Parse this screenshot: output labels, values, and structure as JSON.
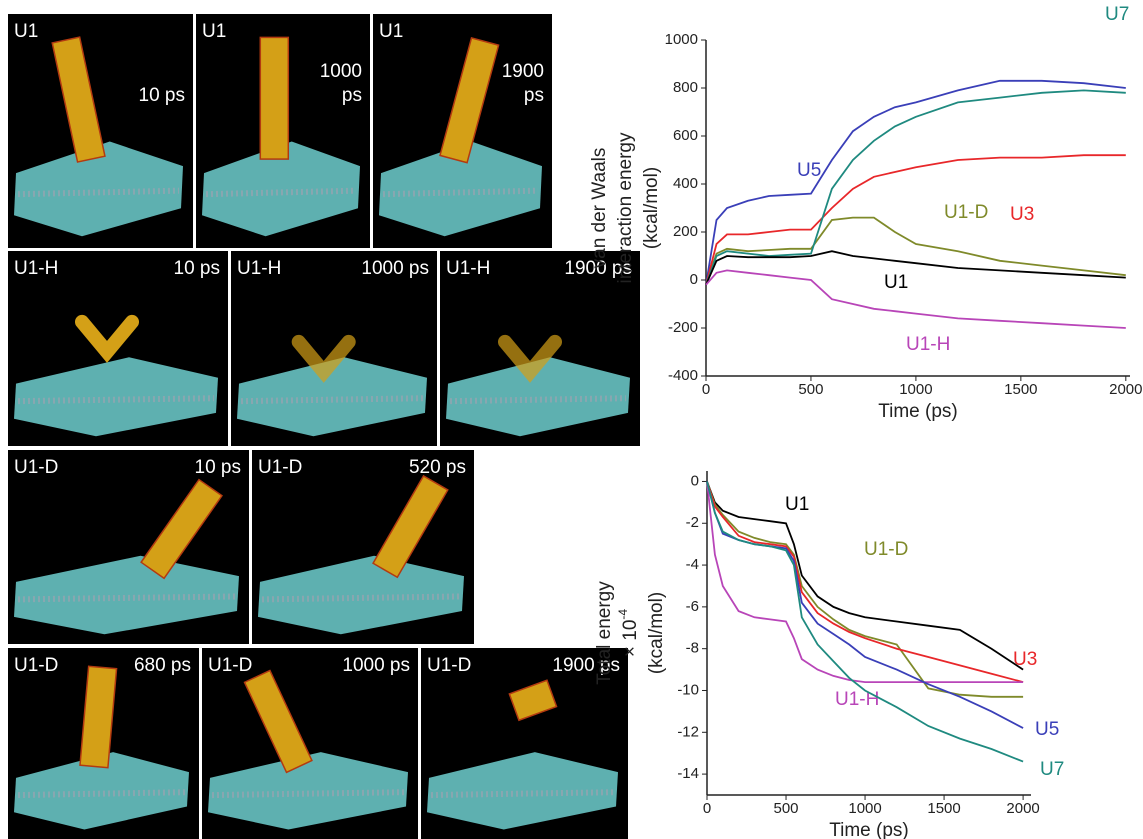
{
  "panels": [
    {
      "label": "U1",
      "time": [
        "10 ps"
      ]
    },
    {
      "label": "U1",
      "time": [
        "1000",
        "ps"
      ]
    },
    {
      "label": "U1",
      "time": [
        "1900",
        "ps"
      ]
    },
    {
      "label": "U1-H",
      "time": [
        "10 ps"
      ]
    },
    {
      "label": "U1-H",
      "time": [
        "1000 ps"
      ]
    },
    {
      "label": "U1-H",
      "time": [
        "1900 ps"
      ]
    },
    {
      "label": "U1-D",
      "time": [
        "10 ps"
      ]
    },
    {
      "label": "U1-D",
      "time": [
        "520 ps"
      ]
    },
    {
      "label": "U1-D",
      "time": [
        "680 ps"
      ]
    },
    {
      "label": "U1-D",
      "time": [
        "1000 ps"
      ]
    },
    {
      "label": "U1-D",
      "time": [
        "1900 ps"
      ]
    }
  ],
  "chart_data": [
    {
      "type": "line",
      "ylabel": [
        "van der Waals",
        "interaction energy",
        "(kcal/mol)"
      ],
      "xlabel": "Time (ps)",
      "x": [
        0,
        50,
        100,
        200,
        300,
        400,
        500,
        600,
        700,
        800,
        900,
        1000,
        1200,
        1400,
        1600,
        1800,
        2000
      ],
      "xlim": [
        0,
        2020
      ],
      "xticks": [
        0,
        500,
        1000,
        1500,
        2000
      ],
      "ylim": [
        -400,
        1000
      ],
      "yticks": [
        -400,
        -200,
        0,
        200,
        400,
        600,
        800,
        1000
      ],
      "series": [
        {
          "name": "U5",
          "color": "#3a3fb8",
          "values": [
            -20,
            250,
            300,
            330,
            350,
            355,
            360,
            500,
            620,
            680,
            720,
            740,
            790,
            830,
            830,
            820,
            800
          ]
        },
        {
          "name": "U1-D",
          "color": "#7f8a2a",
          "values": [
            -20,
            110,
            130,
            120,
            125,
            130,
            130,
            250,
            260,
            260,
            200,
            150,
            120,
            80,
            60,
            40,
            20
          ]
        },
        {
          "name": "U3",
          "color": "#e8272a",
          "values": [
            -20,
            150,
            190,
            190,
            200,
            210,
            210,
            300,
            380,
            430,
            450,
            470,
            500,
            510,
            510,
            520,
            520
          ]
        },
        {
          "name": "U7",
          "color": "#1f8a80",
          "values": [
            -20,
            100,
            120,
            110,
            100,
            105,
            110,
            380,
            500,
            580,
            640,
            680,
            740,
            760,
            780,
            790,
            780
          ]
        },
        {
          "name": "U1",
          "color": "#000000",
          "values": [
            -20,
            80,
            100,
            95,
            95,
            95,
            100,
            120,
            100,
            90,
            80,
            70,
            50,
            40,
            30,
            20,
            10
          ]
        },
        {
          "name": "U1-H",
          "color": "#b845b8",
          "values": [
            -20,
            30,
            40,
            30,
            20,
            10,
            0,
            -80,
            -100,
            -120,
            -130,
            -140,
            -160,
            -170,
            -180,
            -190,
            -200
          ]
        }
      ]
    },
    {
      "type": "line",
      "ylabel": [
        "Total energy",
        "× 10",
        "(kcal/mol)"
      ],
      "ylabel_exponent": "-4",
      "xlabel": "Time (ps)",
      "x": [
        0,
        50,
        100,
        200,
        300,
        400,
        500,
        550,
        600,
        700,
        800,
        900,
        1000,
        1200,
        1400,
        1600,
        1800,
        2000
      ],
      "xlim": [
        0,
        2050
      ],
      "xticks": [
        0,
        500,
        1000,
        1500,
        2000
      ],
      "ylim": [
        -15,
        0.5
      ],
      "yticks": [
        0,
        -2,
        -4,
        -6,
        -8,
        -10,
        -12,
        -14
      ],
      "series": [
        {
          "name": "U1",
          "color": "#000000",
          "values": [
            0,
            -1.0,
            -1.4,
            -1.7,
            -1.8,
            -1.9,
            -2.0,
            -3.0,
            -4.5,
            -5.5,
            -6.0,
            -6.3,
            -6.5,
            -6.7,
            -6.9,
            -7.1,
            -8.0,
            -9.0
          ]
        },
        {
          "name": "U1-D",
          "color": "#7f8a2a",
          "values": [
            0,
            -1.1,
            -1.6,
            -2.4,
            -2.7,
            -2.9,
            -3.0,
            -3.5,
            -5.0,
            -6.0,
            -6.6,
            -7.1,
            -7.4,
            -7.8,
            -9.9,
            -10.2,
            -10.3,
            -10.3
          ]
        },
        {
          "name": "U3",
          "color": "#e8272a",
          "values": [
            0,
            -1.2,
            -1.7,
            -2.6,
            -2.9,
            -3.0,
            -3.1,
            -3.6,
            -5.3,
            -6.3,
            -6.8,
            -7.2,
            -7.5,
            -8.0,
            -8.4,
            -8.8,
            -9.2,
            -9.6
          ]
        },
        {
          "name": "U1-H",
          "color": "#b845b8",
          "values": [
            0,
            -3.5,
            -5.0,
            -6.2,
            -6.5,
            -6.6,
            -6.7,
            -7.5,
            -8.5,
            -9.0,
            -9.3,
            -9.5,
            -9.6,
            -9.6,
            -9.6,
            -9.6,
            -9.6,
            -9.6
          ]
        },
        {
          "name": "U5",
          "color": "#3a3fb8",
          "values": [
            0,
            -1.5,
            -2.5,
            -2.8,
            -3.0,
            -3.1,
            -3.2,
            -3.8,
            -5.8,
            -6.8,
            -7.3,
            -7.8,
            -8.4,
            -9.0,
            -9.7,
            -10.3,
            -11.0,
            -11.8
          ]
        },
        {
          "name": "U7",
          "color": "#1f8a80",
          "values": [
            0,
            -1.5,
            -2.4,
            -2.8,
            -3.0,
            -3.1,
            -3.3,
            -4.0,
            -6.5,
            -7.8,
            -8.6,
            -9.4,
            -10.0,
            -10.8,
            -11.7,
            -12.3,
            -12.8,
            -13.4
          ]
        }
      ]
    }
  ]
}
